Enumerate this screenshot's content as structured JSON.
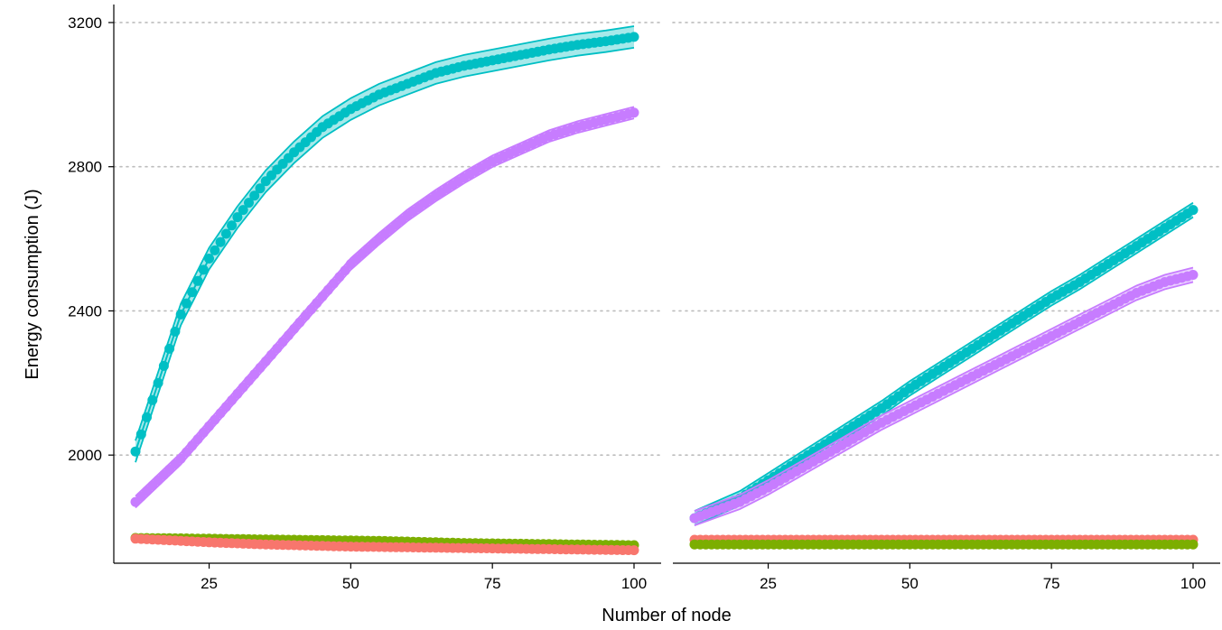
{
  "chart_data": {
    "type": "line",
    "xlabel": "Number of node",
    "ylabel": "Energy consumption (J)",
    "xlim": [
      12,
      100
    ],
    "ylim": [
      1700,
      3250
    ],
    "x_ticks": [
      25,
      50,
      75,
      100
    ],
    "y_ticks": [
      2000,
      2400,
      2800,
      3200
    ],
    "x_tick_labels": [
      "25",
      "50",
      "75",
      "100"
    ],
    "y_tick_labels": [
      "2000",
      "2400",
      "2800",
      "3200"
    ],
    "grid": "horizontal dotted",
    "legend": "none",
    "panels": [
      {
        "x": [
          12,
          20,
          25,
          30,
          35,
          40,
          45,
          50,
          55,
          60,
          65,
          70,
          75,
          80,
          85,
          90,
          95,
          100
        ],
        "series": [
          {
            "color": "#00BFC4",
            "band": 30,
            "values": [
              2010,
              2390,
              2545,
              2660,
              2760,
              2840,
              2910,
              2960,
              3000,
              3030,
              3060,
              3080,
              3095,
              3110,
              3125,
              3138,
              3148,
              3160
            ]
          },
          {
            "color": "#C77CFF",
            "band": 16,
            "values": [
              1870,
              1990,
              2080,
              2170,
              2260,
              2350,
              2440,
              2530,
              2600,
              2665,
              2720,
              2770,
              2815,
              2850,
              2885,
              2910,
              2930,
              2950
            ]
          },
          {
            "color": "#7CAE00",
            "band": 4,
            "values": [
              1770,
              1769,
              1768,
              1767,
              1766,
              1765,
              1764,
              1763,
              1762,
              1760,
              1758,
              1756,
              1755,
              1754,
              1753,
              1752,
              1751,
              1750
            ]
          },
          {
            "color": "#F8766D",
            "band": 4,
            "values": [
              1768,
              1762,
              1758,
              1755,
              1752,
              1750,
              1748,
              1746,
              1745,
              1744,
              1743,
              1742,
              1741,
              1740,
              1739,
              1738,
              1737,
              1736
            ]
          }
        ]
      },
      {
        "x": [
          12,
          20,
          25,
          30,
          35,
          40,
          45,
          50,
          55,
          60,
          65,
          70,
          75,
          80,
          85,
          90,
          95,
          100
        ],
        "series": [
          {
            "color": "#00BFC4",
            "band": 20,
            "values": [
              1825,
              1880,
              1930,
              1980,
              2030,
              2080,
              2130,
              2185,
              2235,
              2285,
              2335,
              2385,
              2435,
              2480,
              2530,
              2580,
              2630,
              2680
            ]
          },
          {
            "color": "#C77CFF",
            "band": 20,
            "values": [
              1825,
              1870,
              1910,
              1955,
              2000,
              2045,
              2090,
              2130,
              2170,
              2210,
              2250,
              2290,
              2330,
              2370,
              2410,
              2450,
              2480,
              2500
            ]
          },
          {
            "color": "#F8766D",
            "band": 4,
            "values": [
              1765,
              1765,
              1765,
              1765,
              1765,
              1765,
              1765,
              1765,
              1765,
              1765,
              1765,
              1765,
              1765,
              1765,
              1765,
              1765,
              1765,
              1765
            ]
          },
          {
            "color": "#7CAE00",
            "band": 4,
            "values": [
              1752,
              1752,
              1752,
              1752,
              1752,
              1752,
              1752,
              1752,
              1752,
              1752,
              1752,
              1752,
              1752,
              1752,
              1752,
              1752,
              1752,
              1752
            ]
          }
        ]
      }
    ]
  }
}
